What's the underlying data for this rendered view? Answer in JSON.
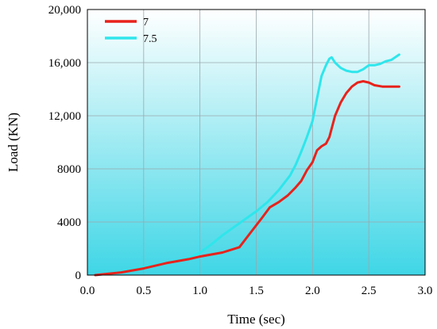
{
  "chart_data": {
    "type": "line",
    "xlabel": "Time (sec)",
    "ylabel": "Load (KN)",
    "xlim": [
      0,
      3
    ],
    "ylim": [
      0,
      20000
    ],
    "x_ticks": [
      "0.0",
      "0.5",
      "1.0",
      "1.5",
      "2.0",
      "2.5",
      "3.0"
    ],
    "y_ticks": [
      "0",
      "4000",
      "8000",
      "12,000",
      "16,000",
      "20,000"
    ],
    "grid": true,
    "legend_position": "top-left",
    "background_gradient": [
      "#ffffff",
      "#3fd6e6"
    ],
    "series": [
      {
        "name": "7",
        "color": "#e8221b",
        "x": [
          0.07,
          0.3,
          0.5,
          0.7,
          0.9,
          1.0,
          1.2,
          1.35,
          1.45,
          1.55,
          1.62,
          1.7,
          1.78,
          1.85,
          1.9,
          1.95,
          2.0,
          2.04,
          2.08,
          2.12,
          2.15,
          2.2,
          2.25,
          2.3,
          2.35,
          2.4,
          2.45,
          2.5,
          2.55,
          2.62,
          2.7,
          2.77
        ],
        "y": [
          0,
          200,
          500,
          900,
          1200,
          1400,
          1700,
          2100,
          3200,
          4300,
          5100,
          5500,
          6000,
          6600,
          7100,
          7900,
          8500,
          9400,
          9700,
          9900,
          10400,
          12000,
          13000,
          13700,
          14200,
          14500,
          14600,
          14500,
          14300,
          14200,
          14200,
          14200
        ]
      },
      {
        "name": "7.5",
        "color": "#2ee6ec",
        "x": [
          0.07,
          0.3,
          0.5,
          0.7,
          0.9,
          1.0,
          1.1,
          1.2,
          1.3,
          1.4,
          1.5,
          1.6,
          1.7,
          1.8,
          1.85,
          1.9,
          1.95,
          2.0,
          2.04,
          2.08,
          2.12,
          2.15,
          2.17,
          2.2,
          2.25,
          2.3,
          2.35,
          2.4,
          2.45,
          2.5,
          2.55,
          2.6,
          2.65,
          2.7,
          2.77
        ],
        "y": [
          0,
          250,
          600,
          900,
          1300,
          1700,
          2300,
          3000,
          3600,
          4200,
          4800,
          5500,
          6400,
          7500,
          8300,
          9300,
          10400,
          11600,
          13300,
          15000,
          15800,
          16300,
          16400,
          16000,
          15600,
          15400,
          15300,
          15300,
          15500,
          15800,
          15800,
          15900,
          16100,
          16200,
          16600
        ]
      }
    ]
  }
}
